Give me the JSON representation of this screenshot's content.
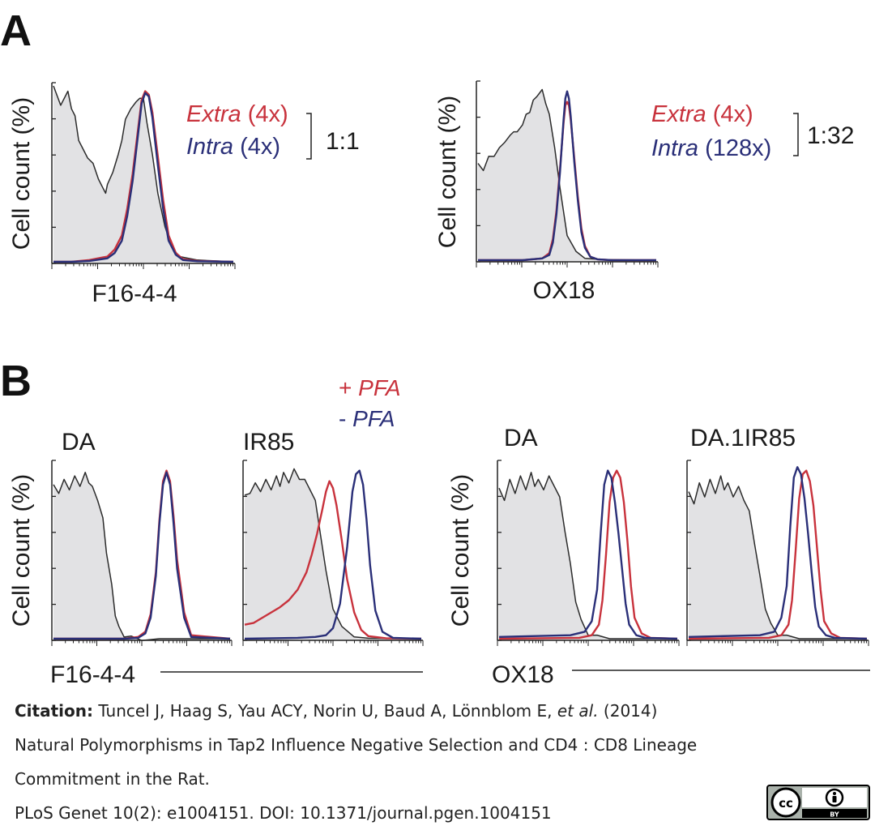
{
  "figure": {
    "panel_a_label": "A",
    "panel_b_label": "B"
  },
  "colors": {
    "extra_red": "#c8323c",
    "intra_blue": "#2a2f78",
    "control_gray_fill": "#e2e2e4",
    "control_line": "#2b2b2b"
  },
  "chart_data": [
    {
      "type": "area",
      "id": "A-F16-4-4",
      "ylabel": "Cell count (%)",
      "xlabel": "F16-4-4",
      "legend": [
        {
          "italic": "Extra",
          "rest": " (4x)",
          "color": "#c8323c"
        },
        {
          "italic": "Intra",
          "rest": " (4x)",
          "color": "#2a2f78"
        }
      ],
      "ratio": "1:1",
      "ylim": [
        0,
        100
      ],
      "series": [
        {
          "kind": "control",
          "x": [
            0,
            4,
            8,
            10,
            12,
            14,
            16,
            19,
            22,
            25,
            27,
            29,
            30,
            33,
            36,
            38,
            40,
            43,
            46,
            48,
            50,
            52,
            55,
            58,
            62,
            66,
            70,
            80,
            90,
            100
          ],
          "values": [
            100,
            90,
            96,
            88,
            82,
            70,
            64,
            60,
            55,
            48,
            42,
            40,
            43,
            52,
            60,
            70,
            80,
            88,
            90,
            94,
            92,
            80,
            60,
            40,
            20,
            8,
            3,
            1,
            0.5,
            0
          ]
        },
        {
          "kind": "red",
          "x": [
            0,
            10,
            20,
            30,
            34,
            38,
            41,
            44,
            47,
            49,
            51,
            53,
            55,
            58,
            61,
            64,
            68,
            72,
            80,
            100
          ],
          "values": [
            0,
            0,
            1,
            3,
            7,
            15,
            30,
            50,
            75,
            92,
            97,
            95,
            85,
            60,
            35,
            15,
            5,
            1.5,
            0.5,
            0
          ]
        },
        {
          "kind": "blue",
          "x": [
            0,
            10,
            20,
            30,
            34,
            38,
            41,
            44,
            47,
            49,
            51,
            53,
            55,
            58,
            61,
            64,
            68,
            72,
            80,
            100
          ],
          "values": [
            0,
            0,
            0.5,
            2,
            5,
            12,
            26,
            46,
            72,
            90,
            96,
            94,
            82,
            55,
            30,
            12,
            4,
            1,
            0.3,
            0
          ]
        }
      ]
    },
    {
      "type": "area",
      "id": "A-OX18",
      "ylabel": "Cell count (%)",
      "xlabel": "OX18",
      "legend": [
        {
          "italic": "Extra",
          "rest": " (4x)",
          "color": "#c8323c"
        },
        {
          "italic": "Intra",
          "rest": " (128x)",
          "color": "#2a2f78"
        }
      ],
      "ratio": "1:32",
      "ylim": [
        0,
        100
      ],
      "series": [
        {
          "kind": "control",
          "x": [
            0,
            3,
            6,
            9,
            12,
            15,
            18,
            20,
            22,
            25,
            27,
            29,
            31,
            33,
            36,
            38,
            40,
            43,
            46,
            50,
            55,
            60,
            70,
            100
          ],
          "values": [
            55,
            52,
            58,
            60,
            63,
            68,
            70,
            74,
            72,
            78,
            82,
            85,
            90,
            94,
            96,
            90,
            82,
            65,
            40,
            15,
            4,
            1,
            0.3,
            0
          ]
        },
        {
          "kind": "red",
          "x": [
            0,
            25,
            36,
            40,
            42,
            44,
            46,
            48,
            49,
            50,
            51,
            52,
            54,
            56,
            58,
            60,
            63,
            67,
            75,
            100
          ],
          "values": [
            0,
            0,
            1,
            4,
            12,
            28,
            52,
            78,
            88,
            90,
            88,
            80,
            58,
            36,
            18,
            8,
            2,
            0.5,
            0,
            0
          ]
        },
        {
          "kind": "blue",
          "x": [
            0,
            25,
            36,
            40,
            42,
            44,
            46,
            48,
            49,
            50,
            51,
            52,
            54,
            56,
            58,
            60,
            63,
            67,
            75,
            100
          ],
          "values": [
            0,
            0,
            1,
            3,
            10,
            26,
            50,
            80,
            92,
            96,
            92,
            82,
            56,
            34,
            16,
            7,
            2,
            0.5,
            0,
            0
          ]
        }
      ]
    },
    {
      "type": "area",
      "id": "B-DA-F16",
      "ylabel": "Cell count (%)",
      "title": "DA",
      "ylim": [
        0,
        100
      ],
      "series": [
        {
          "kind": "control",
          "x": [
            0,
            3,
            6,
            9,
            12,
            15,
            18,
            20,
            22,
            25,
            28,
            30,
            33,
            35,
            37,
            40,
            44,
            50,
            60,
            100
          ],
          "values": [
            88,
            84,
            90,
            86,
            92,
            88,
            94,
            90,
            86,
            80,
            68,
            50,
            30,
            14,
            6,
            2,
            0.5,
            0,
            0,
            0
          ]
        },
        {
          "kind": "red",
          "x": [
            0,
            40,
            48,
            52,
            55,
            58,
            60,
            62,
            64,
            66,
            68,
            70,
            74,
            78,
            100
          ],
          "values": [
            0,
            0,
            1,
            4,
            14,
            38,
            68,
            90,
            96,
            90,
            70,
            45,
            15,
            2,
            0
          ]
        },
        {
          "kind": "blue",
          "x": [
            0,
            40,
            48,
            52,
            55,
            58,
            60,
            62,
            64,
            66,
            68,
            70,
            74,
            78,
            100
          ],
          "values": [
            0,
            0,
            0.5,
            3,
            12,
            36,
            66,
            88,
            95,
            88,
            66,
            40,
            12,
            1,
            0
          ]
        }
      ]
    },
    {
      "type": "area",
      "id": "B-IR85-F16",
      "ylabel": "",
      "title": "IR85",
      "legend": [
        {
          "italic": "PFA",
          "prefix": "+ ",
          "color": "#c8323c"
        },
        {
          "italic": "PFA",
          "prefix": "- ",
          "color": "#2a2f78"
        }
      ],
      "ylim": [
        0,
        100
      ],
      "series": [
        {
          "kind": "control",
          "x": [
            0,
            3,
            6,
            9,
            12,
            15,
            18,
            20,
            22,
            25,
            28,
            31,
            34,
            37,
            40,
            43,
            46,
            50,
            55,
            62,
            70,
            100
          ],
          "values": [
            82,
            84,
            88,
            85,
            90,
            86,
            92,
            88,
            94,
            90,
            96,
            92,
            90,
            86,
            78,
            60,
            38,
            18,
            6,
            1,
            0.3,
            0
          ]
        },
        {
          "kind": "red",
          "x": [
            0,
            5,
            10,
            15,
            20,
            25,
            30,
            35,
            38,
            41,
            44,
            46,
            48,
            50,
            52,
            55,
            58,
            62,
            66,
            70,
            80,
            100
          ],
          "values": [
            8,
            9,
            12,
            15,
            18,
            22,
            28,
            38,
            48,
            60,
            74,
            84,
            90,
            86,
            76,
            56,
            34,
            15,
            5,
            1.5,
            0.3,
            0
          ]
        },
        {
          "kind": "blue",
          "x": [
            0,
            30,
            40,
            46,
            50,
            54,
            58,
            61,
            63,
            65,
            67,
            69,
            71,
            74,
            78,
            84,
            100
          ],
          "values": [
            0,
            0.5,
            1,
            2,
            6,
            20,
            52,
            84,
            94,
            96,
            88,
            68,
            42,
            16,
            4,
            0.5,
            0
          ]
        }
      ]
    },
    {
      "type": "area",
      "id": "B-DA-OX18",
      "ylabel": "Cell count (%)",
      "title": "DA",
      "ylim": [
        0,
        100
      ],
      "series": [
        {
          "kind": "control",
          "x": [
            0,
            3,
            6,
            9,
            12,
            15,
            18,
            20,
            22,
            25,
            28,
            31,
            34,
            37,
            40,
            43,
            46,
            50,
            55,
            62,
            100
          ],
          "values": [
            86,
            80,
            90,
            84,
            92,
            86,
            94,
            88,
            90,
            86,
            92,
            88,
            80,
            62,
            42,
            22,
            10,
            3,
            1,
            0,
            0
          ]
        },
        {
          "kind": "red",
          "x": [
            0,
            45,
            52,
            56,
            58,
            60,
            62,
            64,
            66,
            68,
            70,
            72,
            74,
            76,
            80,
            85,
            100
          ],
          "values": [
            0,
            0.5,
            2,
            8,
            22,
            48,
            78,
            92,
            96,
            92,
            78,
            56,
            30,
            12,
            3,
            0.5,
            0
          ]
        },
        {
          "kind": "blue",
          "x": [
            0,
            40,
            48,
            52,
            55,
            57,
            59,
            61,
            63,
            65,
            67,
            69,
            71,
            73,
            77,
            82,
            100
          ],
          "values": [
            1,
            2,
            4,
            10,
            28,
            60,
            88,
            96,
            92,
            78,
            60,
            40,
            20,
            8,
            2,
            0.5,
            0
          ]
        }
      ]
    },
    {
      "type": "area",
      "id": "B-DA1IR85-OX18",
      "ylabel": "",
      "title": "DA.1IR85",
      "ylim": [
        0,
        100
      ],
      "series": [
        {
          "kind": "control",
          "x": [
            0,
            3,
            6,
            9,
            12,
            15,
            18,
            20,
            22,
            25,
            28,
            31,
            34,
            37,
            40,
            43,
            46,
            50,
            55,
            62,
            100
          ],
          "values": [
            84,
            78,
            88,
            82,
            90,
            84,
            92,
            86,
            88,
            82,
            86,
            80,
            72,
            55,
            35,
            18,
            8,
            3,
            1,
            0,
            0
          ]
        },
        {
          "kind": "red",
          "x": [
            0,
            45,
            52,
            56,
            58,
            60,
            62,
            64,
            66,
            68,
            70,
            72,
            74,
            76,
            80,
            85,
            100
          ],
          "values": [
            0,
            0.5,
            2,
            8,
            22,
            50,
            80,
            94,
            96,
            90,
            76,
            52,
            28,
            10,
            3,
            0.5,
            0
          ]
        },
        {
          "kind": "blue",
          "x": [
            0,
            40,
            48,
            52,
            55,
            57,
            59,
            61,
            63,
            65,
            67,
            69,
            71,
            73,
            77,
            82,
            100
          ],
          "values": [
            1,
            2,
            4,
            12,
            30,
            64,
            92,
            98,
            94,
            80,
            60,
            38,
            18,
            7,
            2,
            0.5,
            0
          ]
        }
      ]
    }
  ],
  "bottom_labels": {
    "f16": "F16-4-4",
    "ox18": "OX18"
  },
  "citation": {
    "label": "Citation:",
    "authors": " Tuncel J, Haag S, Yau ACY, Norin U, Baud A, Lönnblom E, ",
    "etal": "et al.",
    "year": " (2014)",
    "title_line1": "Natural Polymorphisms in Tap2 Influence Negative Selection and CD4 : CD8 Lineage",
    "title_line2": "Commitment in the Rat.",
    "journal_line": "PLoS Genet 10(2): e1004151. DOI: 10.1371/journal.pgen.1004151"
  },
  "license": {
    "cc": "cc",
    "by": "BY"
  }
}
